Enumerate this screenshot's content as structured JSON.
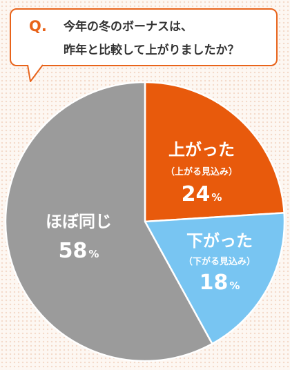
{
  "question": {
    "mark": "Q.",
    "lines": [
      "今年の冬のボーナスは、",
      "昨年と比較して上がりましたか？"
    ]
  },
  "colors": {
    "accent": "#e8631a",
    "up": "#e85a0c",
    "down": "#78c5f2",
    "same": "#9b9b9b"
  },
  "chart_data": {
    "type": "pie",
    "title": "今年の冬のボーナスは、昨年と比較して上がりましたか？",
    "slices": [
      {
        "key": "up",
        "label": "上がった",
        "sublabel": "（上がる見込み）",
        "value": 24,
        "unit": "%"
      },
      {
        "key": "down",
        "label": "下がった",
        "sublabel": "（下がる見込み）",
        "value": 18,
        "unit": "%"
      },
      {
        "key": "same",
        "label": "ほぼ同じ",
        "sublabel": "",
        "value": 58,
        "unit": "%"
      }
    ]
  }
}
